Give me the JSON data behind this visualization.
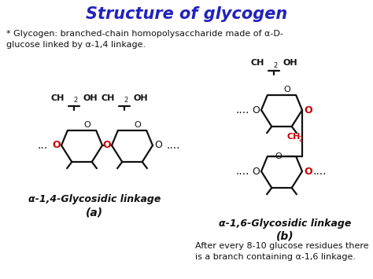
{
  "title": "Structure of glycogen",
  "title_color": "#2222bb",
  "bg_color": "#ffffff",
  "subtitle_line1": "* Glycogen: branched-chain homopolysaccharide made of α-D-",
  "subtitle_line2": "glucose linked by α-1,4 linkage.",
  "label_a": "α-1,4-Glycosidic linkage",
  "label_a2": "(a)",
  "label_b": "α-1,6-Glycosidic linkage",
  "label_b2": "(b)",
  "footer_line1": "After every 8-10 glucose residues there",
  "footer_line2": "is a branch containing α-1,6 linkage.",
  "text_color": "#111111",
  "red_color": "#cc0000",
  "lw": 1.6
}
